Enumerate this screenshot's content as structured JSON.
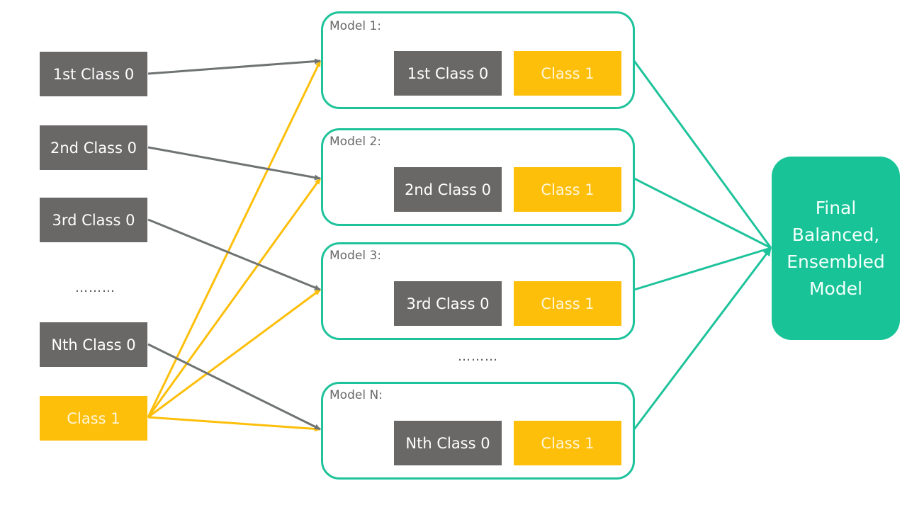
{
  "inputs": {
    "first": "1st Class 0",
    "second": "2nd Class 0",
    "third": "3rd Class 0",
    "ellipsis": "………",
    "nth": "Nth Class 0",
    "class1": "Class 1"
  },
  "models": [
    {
      "title": "Model 1:",
      "class0": "1st Class 0",
      "class1": "Class 1"
    },
    {
      "title": "Model 2:",
      "class0": "2nd Class 0",
      "class1": "Class 1"
    },
    {
      "title": "Model 3:",
      "class0": "3rd Class 0",
      "class1": "Class 1"
    },
    {
      "title": "Model N:",
      "class0": "Nth Class 0",
      "class1": "Class 1"
    }
  ],
  "models_ellipsis": "………",
  "final": {
    "label": "Final Balanced, Ensembled Model"
  },
  "colors": {
    "gray": "#6a6767",
    "yellow": "#fdbf0a",
    "teal": "#1ec39b",
    "final_fill": "#18c497",
    "gray_arrow": "#6f7473",
    "yellow_arrow": "#fdbf0a"
  }
}
